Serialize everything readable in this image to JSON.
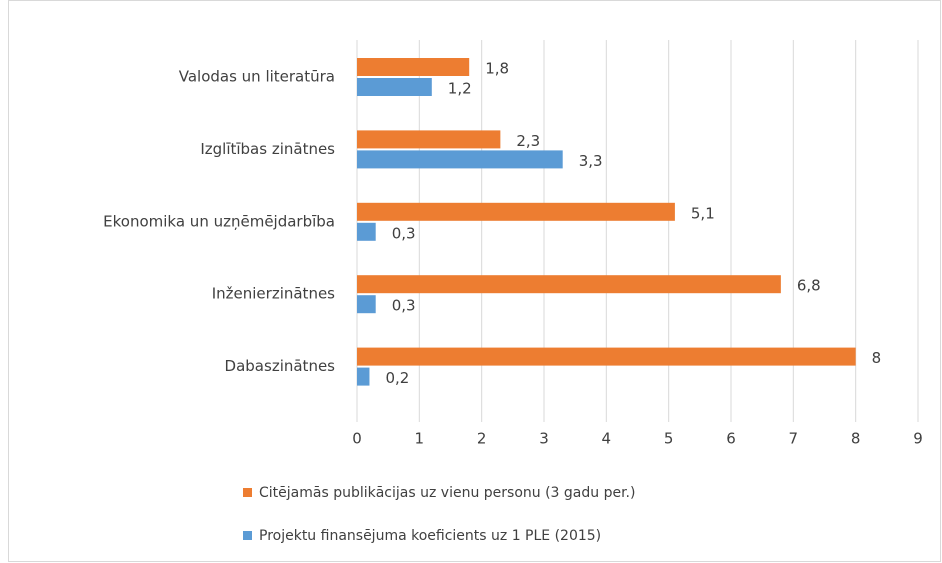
{
  "chart_data": {
    "type": "hbar",
    "categories": [
      "Valodas un literatūra",
      "Izglītības zinātnes",
      "Ekonomika un uzņēmējdarbība",
      "Inženierzinātnes",
      "Dabaszinātnes"
    ],
    "series": [
      {
        "name": "Citējamās publikācijas uz vienu personu (3 gadu per.)",
        "color": "#ed7d31",
        "values": [
          1.8,
          2.3,
          5.1,
          6.8,
          8
        ],
        "value_labels": [
          "1,8",
          "2,3",
          "5,1",
          "6,8",
          "8"
        ]
      },
      {
        "name": "Projektu finansējuma koeficients uz 1 PLE (2015)",
        "color": "#5b9bd5",
        "values": [
          1.2,
          3.3,
          0.3,
          0.3,
          0.2
        ],
        "value_labels": [
          "1,2",
          "3,3",
          "0,3",
          "0,3",
          "0,2"
        ]
      }
    ],
    "xlim": [
      0,
      9
    ],
    "xticks": [
      0,
      1,
      2,
      3,
      4,
      5,
      6,
      7,
      8,
      9
    ],
    "grid": true,
    "legend": "bottom"
  }
}
